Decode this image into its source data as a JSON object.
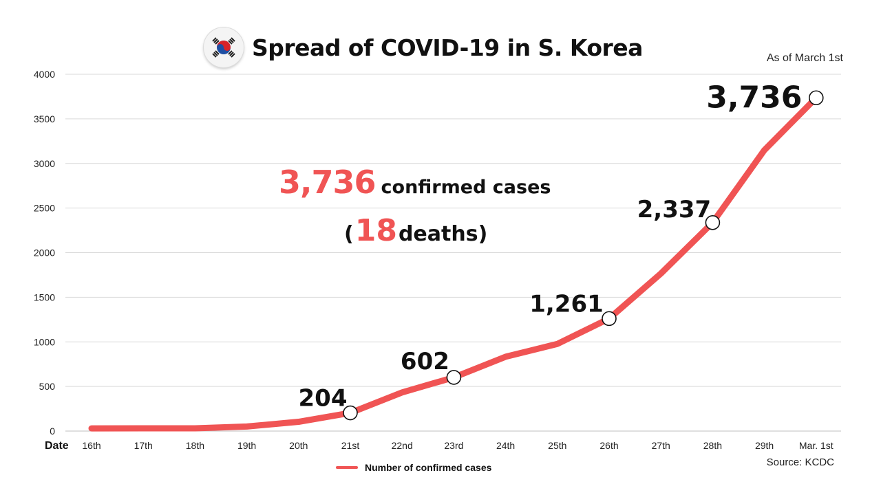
{
  "header": {
    "title": "Spread of COVID-19 in S. Korea",
    "flag_icon": "south-korea-flag-icon",
    "as_of": "As of March 1st",
    "source": "Source: KCDC"
  },
  "headline": {
    "cases_number": "3,736",
    "cases_text": "confirmed cases",
    "paren_open": "(",
    "deaths_number": "18",
    "deaths_text": "deaths)"
  },
  "colors": {
    "line": "#f05454",
    "accent": "#f05454",
    "grid": "#d9d9d9",
    "text": "#111111"
  },
  "chart_data": {
    "type": "line",
    "title": "Spread of COVID-19 in S. Korea",
    "xlabel": "Date",
    "ylabel": "",
    "categories": [
      "16th",
      "17th",
      "18th",
      "19th",
      "20th",
      "21st",
      "22nd",
      "23rd",
      "24th",
      "25th",
      "26th",
      "27th",
      "28th",
      "29th",
      "Mar. 1st"
    ],
    "series": [
      {
        "name": "Number of confirmed cases",
        "values": [
          30,
          31,
          31,
          51,
          104,
          204,
          433,
          602,
          833,
          977,
          1261,
          1766,
          2337,
          3150,
          3736
        ]
      }
    ],
    "ylim": [
      0,
      4000
    ],
    "yticks": [
      0,
      500,
      1000,
      1500,
      2000,
      2500,
      3000,
      3500,
      4000
    ],
    "grid": true,
    "legend": "bottom",
    "annotations": [
      {
        "index": 5,
        "label": "204"
      },
      {
        "index": 7,
        "label": "602"
      },
      {
        "index": 10,
        "label": "1,261"
      },
      {
        "index": 12,
        "label": "2,337"
      },
      {
        "index": 14,
        "label": "3,736"
      }
    ]
  }
}
